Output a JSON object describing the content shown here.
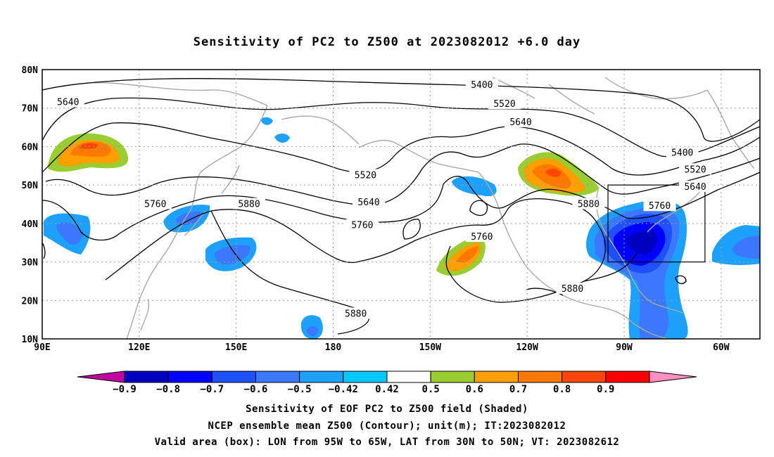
{
  "title": "Sensitivity of PC2 to Z500 at 2023082012 +6.0 day",
  "axes": {
    "lat_labels": [
      "80N",
      "70N",
      "60N",
      "50N",
      "40N",
      "30N",
      "20N",
      "10N"
    ],
    "lat_values": [
      80,
      70,
      60,
      50,
      40,
      30,
      20,
      10
    ],
    "lon_labels": [
      "90E",
      "120E",
      "150E",
      "180",
      "150W",
      "120W",
      "90W",
      "60W"
    ],
    "lon_values": [
      90,
      120,
      150,
      180,
      210,
      240,
      270,
      300
    ],
    "lon_range": [
      90,
      312
    ],
    "lat_range": [
      10,
      80
    ],
    "grid": "dotted"
  },
  "contour_labels": [
    {
      "text": "5400",
      "lon": 226,
      "lat": 76
    },
    {
      "text": "5520",
      "lon": 233,
      "lat": 71
    },
    {
      "text": "5640",
      "lon": 238,
      "lat": 66.3
    },
    {
      "text": "5400",
      "lon": 288,
      "lat": 58.3
    },
    {
      "text": "5520",
      "lon": 292,
      "lat": 54
    },
    {
      "text": "5640",
      "lon": 292,
      "lat": 49.5
    },
    {
      "text": "5760",
      "lon": 281,
      "lat": 44.5
    },
    {
      "text": "5880",
      "lon": 259,
      "lat": 45
    },
    {
      "text": "5640",
      "lon": 98,
      "lat": 71.5
    },
    {
      "text": "5760",
      "lon": 125,
      "lat": 45
    },
    {
      "text": "5880",
      "lon": 154,
      "lat": 45
    },
    {
      "text": "5520",
      "lon": 190,
      "lat": 52.5
    },
    {
      "text": "5640",
      "lon": 191,
      "lat": 45.5
    },
    {
      "text": "5760",
      "lon": 189,
      "lat": 39.5
    },
    {
      "text": "5760",
      "lon": 226,
      "lat": 36.5
    },
    {
      "text": "5880",
      "lon": 254,
      "lat": 23
    },
    {
      "text": "5880",
      "lon": 187,
      "lat": 16.5
    }
  ],
  "valid_box": {
    "lon_min": 265,
    "lon_max": 295,
    "lat_min": 30,
    "lat_max": 50
  },
  "colorbar": {
    "colors": [
      "#c000a0",
      "#0000c0",
      "#0000ff",
      "#1e50ff",
      "#3c78ff",
      "#1ea0ff",
      "#00c8ff",
      "#ffffff",
      "#9acd32",
      "#ffa000",
      "#ff7800",
      "#ff4600",
      "#ff0000",
      "#ff90c0"
    ],
    "labels": [
      "−0.9",
      "−0.8",
      "−0.7",
      "−0.6",
      "−0.5",
      "−0.42",
      "0.42",
      "0.5",
      "0.6",
      "0.7",
      "0.8",
      "0.9"
    ]
  },
  "footer": {
    "line1": "Sensitivity of EOF PC2 to Z500 field (Shaded)",
    "line2": "NCEP ensemble mean Z500 (Contour); unit(m); IT:2023082012",
    "line3": "Valid area (box): LON from 95W to 65W, LAT from 30N to 50N; VT: 2023082612"
  }
}
